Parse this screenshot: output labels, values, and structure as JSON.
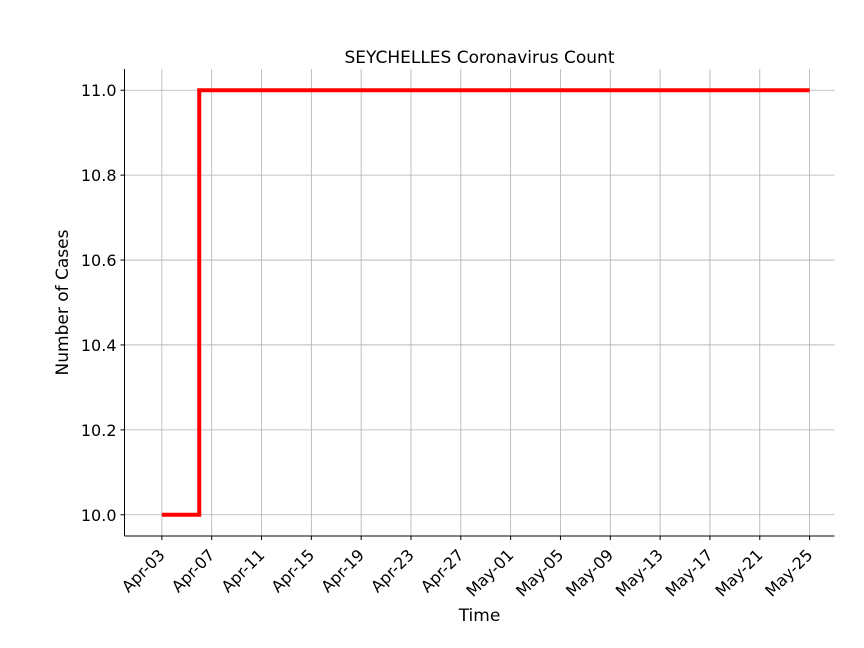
{
  "chart_data": {
    "type": "line",
    "title": "SEYCHELLES Coronavirus Count",
    "xlabel": "Time",
    "ylabel": "Number of Cases",
    "x_ticks": [
      "2020-04-03",
      "2020-04-07",
      "2020-04-11",
      "2020-04-15",
      "2020-04-19",
      "2020-04-23",
      "2020-04-27",
      "2020-05-01",
      "2020-05-05",
      "2020-05-09",
      "2020-05-13",
      "2020-05-17",
      "2020-05-21",
      "2020-05-25"
    ],
    "x_tick_labels": [
      "Apr-03",
      "Apr-07",
      "Apr-11",
      "Apr-15",
      "Apr-19",
      "Apr-23",
      "Apr-27",
      "May-01",
      "May-05",
      "May-09",
      "May-13",
      "May-17",
      "May-21",
      "May-25"
    ],
    "y_ticks": [
      10.0,
      10.2,
      10.4,
      10.6,
      10.8,
      11.0
    ],
    "y_tick_labels": [
      "10.0",
      "10.2",
      "10.4",
      "10.6",
      "10.8",
      "11.0"
    ],
    "xlim": [
      "2020-03-31",
      "2020-05-27"
    ],
    "ylim": [
      9.95,
      11.05
    ],
    "grid": true,
    "series": [
      {
        "color": "#ff0000",
        "x": [
          "2020-04-03",
          "2020-04-04",
          "2020-04-05",
          "2020-04-06",
          "2020-04-07",
          "2020-05-25"
        ],
        "values": [
          10,
          10,
          10,
          10,
          11,
          11
        ],
        "step": "post-at-2020-04-06"
      }
    ]
  }
}
